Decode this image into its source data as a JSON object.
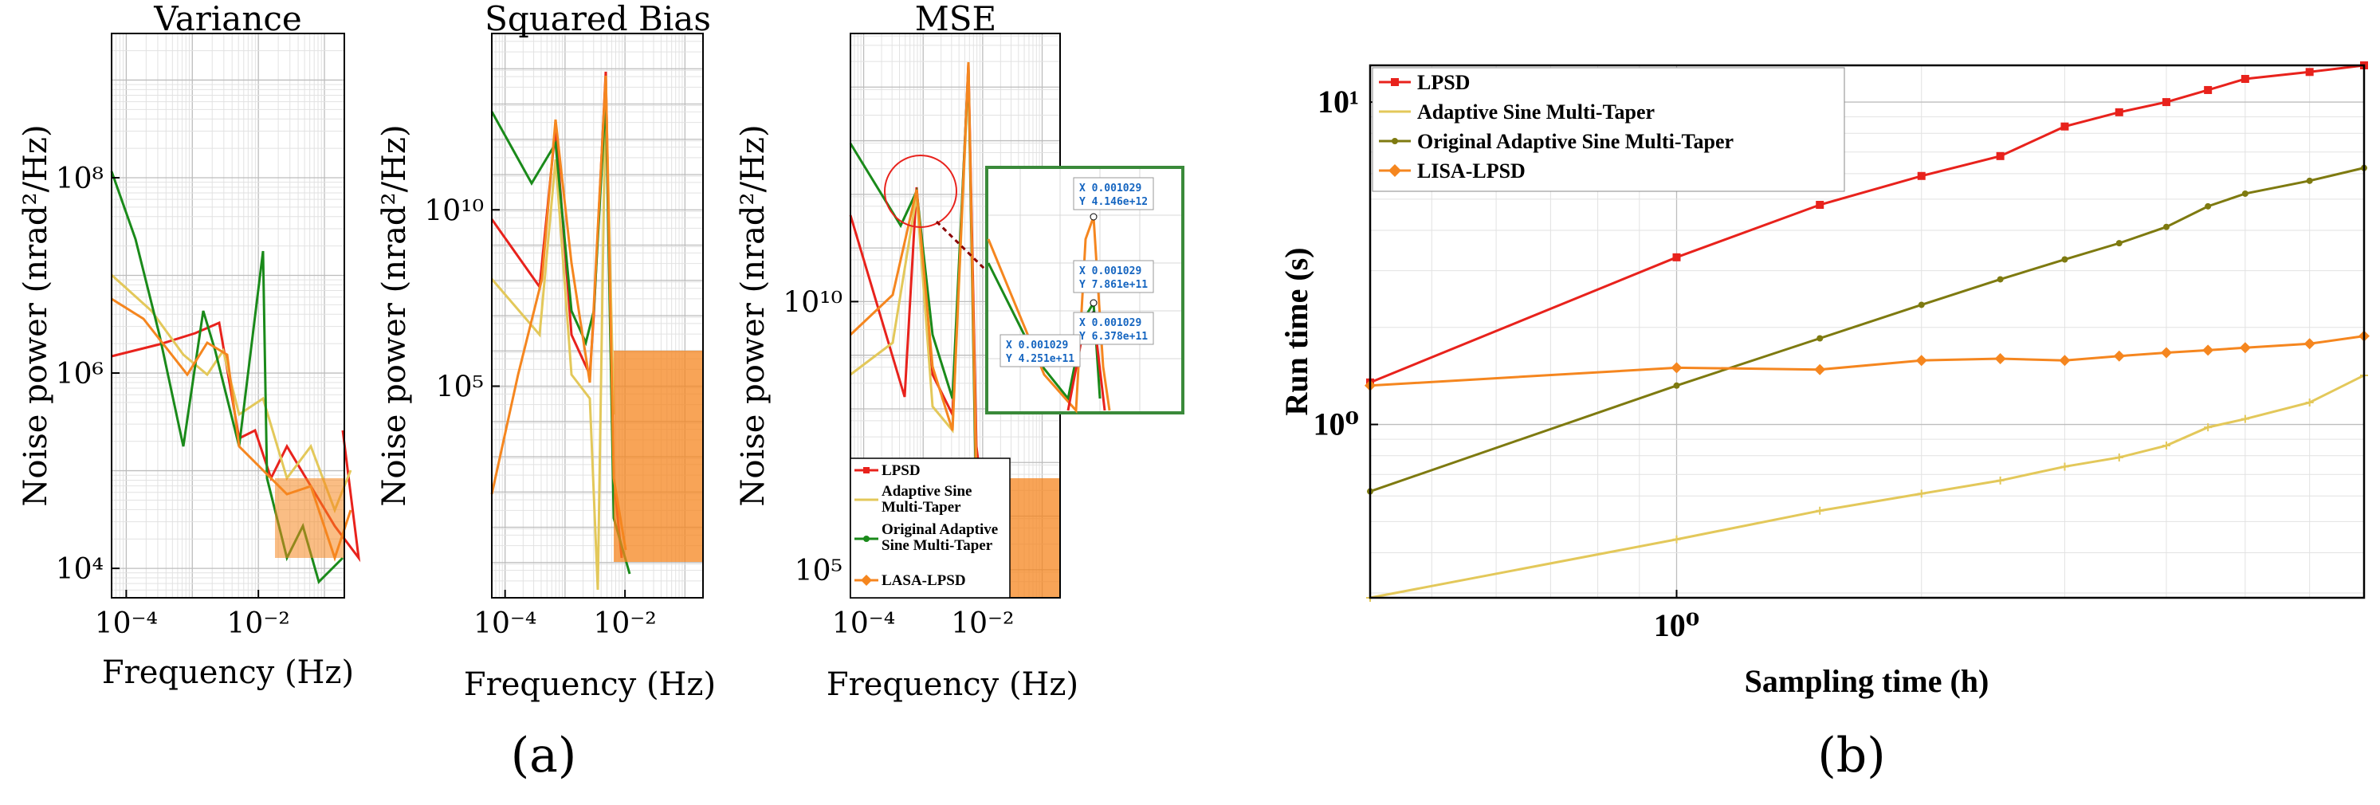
{
  "chart_data": [
    {
      "id": "variance",
      "type": "line",
      "title": "Variance",
      "xlabel": "Frequency (Hz)",
      "ylabel": "Noise power (nrad²/Hz)",
      "xscale": "log",
      "yscale": "log",
      "xlim": [
        6e-05,
        0.2
      ],
      "ylim": [
        5000,
        3000000000
      ],
      "xticks": [
        {
          "v": 0.0001,
          "l": "10⁻⁴"
        },
        {
          "v": 0.01,
          "l": "10⁻²"
        }
      ],
      "yticks": [
        {
          "v": 10000,
          "l": "10⁴"
        },
        {
          "v": 1000000,
          "l": "10⁶"
        },
        {
          "v": 100000000,
          "l": "10⁸"
        }
      ],
      "grid": true
    },
    {
      "id": "bias",
      "type": "line",
      "title": "Squared Bias",
      "xlabel": "Frequency (Hz)",
      "ylabel": "Noise power (nrad²/Hz)",
      "xscale": "log",
      "yscale": "log",
      "xlim": [
        6e-05,
        0.2
      ],
      "ylim": [
        0.1,
        1000000000000000
      ],
      "xticks": [
        {
          "v": 0.0001,
          "l": "10⁻⁴"
        },
        {
          "v": 0.01,
          "l": "10⁻²"
        }
      ],
      "yticks": [
        {
          "v": 100000,
          "l": "10⁵"
        },
        {
          "v": 10000000000,
          "l": "10¹⁰"
        }
      ],
      "grid": true
    },
    {
      "id": "mse",
      "type": "line",
      "title": "MSE",
      "xlabel": "Frequency (Hz)",
      "ylabel": "Noise power (nrad²/Hz)",
      "xscale": "log",
      "yscale": "log",
      "xlim": [
        6e-05,
        0.2
      ],
      "ylim": [
        30000,
        1000000000000000
      ],
      "xticks": [
        {
          "v": 0.0001,
          "l": "10⁻⁴"
        },
        {
          "v": 0.01,
          "l": "10⁻²"
        }
      ],
      "yticks": [
        {
          "v": 100000,
          "l": "10⁵"
        },
        {
          "v": 10000000000,
          "l": "10¹⁰"
        }
      ],
      "grid": true,
      "legend": [
        "LPSD",
        "Adaptive Sine Multi-Taper",
        "Original Adaptive Sine Multi-Taper",
        "LASA-LPSD"
      ],
      "legend_lines": [
        [
          "LPSD"
        ],
        [
          "Adaptive Sine",
          "Multi-Taper"
        ],
        [
          "Original Adaptive",
          "Sine Multi-Taper"
        ],
        [
          "LASA-LPSD"
        ]
      ],
      "inset_datatips": [
        {
          "x": "X 0.001029",
          "y": "Y 4.146e+12"
        },
        {
          "x": "X 0.001029",
          "y": "Y 7.861e+11"
        },
        {
          "x": "X 0.001029",
          "y": "Y 6.378e+11"
        },
        {
          "x": "X 0.001029",
          "y": "Y 4.251e+11"
        }
      ]
    },
    {
      "id": "runtime",
      "type": "line",
      "xlabel": "Sampling time (h)",
      "ylabel": "Run time (s)",
      "xscale": "log",
      "yscale": "log",
      "xlim": [
        0.42,
        7.0
      ],
      "ylim": [
        0.29,
        13.0
      ],
      "xticks": [
        {
          "v": 1,
          "l": "10⁰"
        }
      ],
      "yticks": [
        {
          "v": 1,
          "l": "10⁰"
        },
        {
          "v": 10,
          "l": "10¹"
        }
      ],
      "grid": true,
      "legend_position": "top-left",
      "series": [
        {
          "name": "LPSD",
          "color": "#e8221c",
          "marker": "square",
          "x": [
            0.42,
            1.0,
            1.5,
            2.0,
            2.5,
            3.0,
            3.5,
            4.0,
            4.5,
            5.0,
            6.0,
            7.0
          ],
          "y": [
            1.35,
            3.3,
            4.8,
            5.9,
            6.8,
            8.4,
            9.3,
            10.0,
            10.9,
            11.8,
            12.4,
            13.0
          ]
        },
        {
          "name": "Adaptive Sine Multi-Taper",
          "color": "#e3c85a",
          "marker": "plus",
          "x": [
            0.42,
            1.0,
            1.5,
            2.0,
            2.5,
            3.0,
            3.5,
            4.0,
            4.5,
            5.0,
            6.0,
            7.0
          ],
          "y": [
            0.29,
            0.44,
            0.54,
            0.61,
            0.67,
            0.74,
            0.79,
            0.86,
            0.98,
            1.04,
            1.17,
            1.42
          ]
        },
        {
          "name": "Original Adaptive Sine Multi-Taper",
          "color": "#7e7a10",
          "marker": "dot",
          "x": [
            0.42,
            1.0,
            1.5,
            2.0,
            2.5,
            3.0,
            3.5,
            4.0,
            4.5,
            5.0,
            6.0,
            7.0
          ],
          "y": [
            0.62,
            1.32,
            1.85,
            2.35,
            2.82,
            3.25,
            3.65,
            4.1,
            4.75,
            5.2,
            5.7,
            6.25
          ]
        },
        {
          "name": "LISA-LPSD",
          "color": "#f5861f",
          "marker": "diamond",
          "x": [
            0.42,
            1.0,
            1.5,
            2.0,
            2.5,
            3.0,
            3.5,
            4.0,
            4.5,
            5.0,
            6.0,
            7.0
          ],
          "y": [
            1.32,
            1.5,
            1.48,
            1.58,
            1.6,
            1.58,
            1.63,
            1.67,
            1.7,
            1.73,
            1.78,
            1.88
          ]
        }
      ]
    }
  ],
  "panel_labels": {
    "a": "(a)",
    "b": "(b)"
  }
}
